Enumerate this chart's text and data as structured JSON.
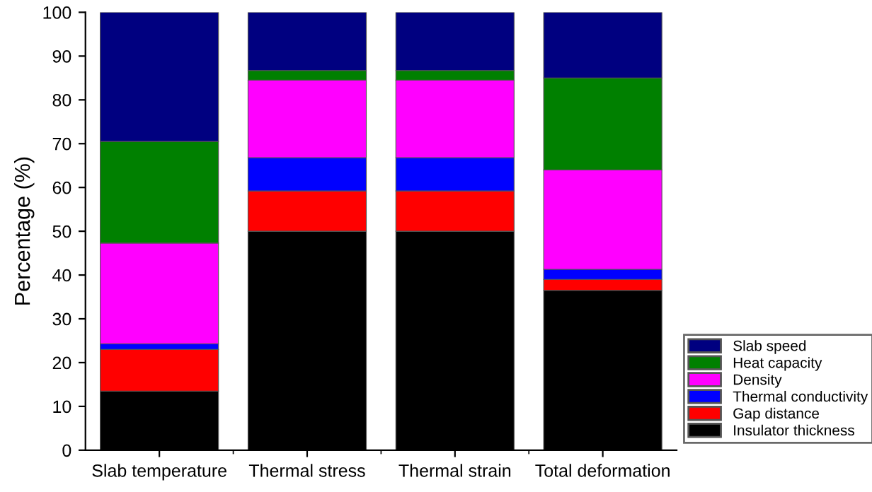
{
  "chart_data": {
    "type": "bar",
    "stacked": true,
    "ylabel": "Percentage (%)",
    "categories": [
      "Slab temperature",
      "Thermal stress",
      "Thermal strain",
      "Total deformation"
    ],
    "series": [
      {
        "name": "Insulator thickness",
        "color": "#000000",
        "values": [
          13.5,
          50,
          50,
          36.5
        ]
      },
      {
        "name": "Gap distance",
        "color": "#ff0000",
        "values": [
          9.5,
          9.2,
          9.2,
          2.5
        ]
      },
      {
        "name": "Thermal conductivity",
        "color": "#0000ff",
        "values": [
          1.3,
          7.6,
          7.6,
          2.3
        ]
      },
      {
        "name": "Density",
        "color": "#ff00ff",
        "values": [
          23,
          17.7,
          17.7,
          22.7
        ]
      },
      {
        "name": "Heat capacity",
        "color": "#008000",
        "values": [
          23.2,
          2.2,
          2.2,
          21
        ]
      },
      {
        "name": "Slab speed",
        "color": "#000080",
        "values": [
          29.5,
          13.3,
          13.3,
          15
        ]
      }
    ],
    "ylim": [
      0,
      100
    ],
    "yticks": [
      0,
      10,
      20,
      30,
      40,
      50,
      60,
      70,
      80,
      90,
      100
    ],
    "grid": false,
    "legend": "bottom right"
  }
}
